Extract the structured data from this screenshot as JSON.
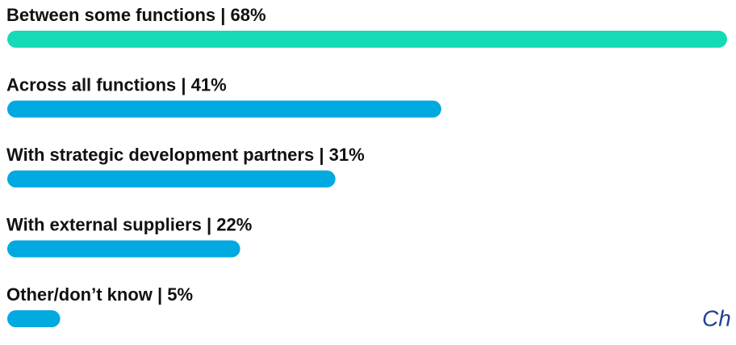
{
  "chart_data": {
    "type": "hbar",
    "categories": [
      "Between some functions | 68%",
      "Across all functions | 41%",
      "With strategic development partners | 31%",
      "With external suppliers | 22%",
      "Other/don’t know | 5%"
    ],
    "values": [
      68,
      41,
      31,
      22,
      5
    ],
    "colors": [
      "#14dbb5",
      "#00a9e0",
      "#00a9e0",
      "#00a9e0",
      "#00a9e0"
    ],
    "xlim": [
      0,
      68
    ],
    "footer_text": "Ch"
  }
}
